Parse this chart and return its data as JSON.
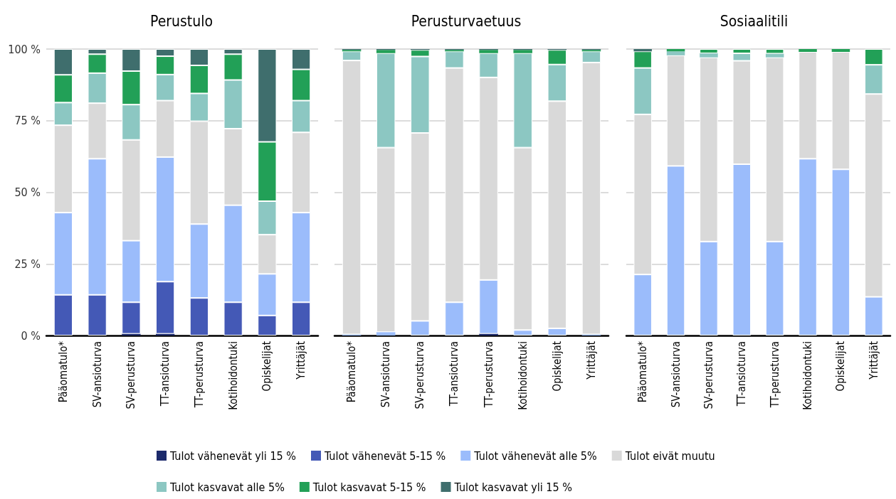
{
  "chart_data": [
    {
      "type": "bar",
      "title": "Perustulo",
      "stacked": true,
      "legend": "bottom",
      "grid": "y",
      "ylim": [
        0,
        100
      ],
      "yticks": [
        {
          "value": 0,
          "label": "0 %"
        },
        {
          "value": 25,
          "label": "25 %"
        },
        {
          "value": 50,
          "label": "50 %"
        },
        {
          "value": 75,
          "label": "75 %"
        },
        {
          "value": 100,
          "label": "100 %"
        }
      ],
      "categories": [
        "Pääomatulo*",
        "SV-ansioturva",
        "SV-perusturva",
        "TT-ansioturva",
        "TT-perusturva",
        "Kotihoidontuki",
        "Opiskelijat",
        "Yrittäjät"
      ],
      "series": [
        {
          "name": "Tulot vähenevät yli 15 %",
          "color": "#1c2a6b",
          "values": [
            0,
            0,
            0.6,
            0.6,
            0,
            0,
            0,
            0
          ]
        },
        {
          "name": "Tulot vähenevät 5-15 %",
          "color": "#4459b6",
          "values": [
            14.2,
            14.2,
            11.0,
            18.2,
            13.1,
            11.6,
            7.0,
            11.6
          ]
        },
        {
          "name": "Tulot vähenevät alle 5%",
          "color": "#9bbcfb",
          "values": [
            28.7,
            47.5,
            21.5,
            43.5,
            25.8,
            33.9,
            14.5,
            31.3
          ]
        },
        {
          "name": "Tulot eivät muutu",
          "color": "#d9d9d9",
          "values": [
            30.5,
            19.4,
            35.2,
            19.7,
            35.9,
            26.7,
            13.7,
            28.0
          ]
        },
        {
          "name": "Tulot kasvavat alle 5%",
          "color": "#8cc7c2",
          "values": [
            7.9,
            10.5,
            12.3,
            9.1,
            9.7,
            17.0,
            11.7,
            11.1
          ]
        },
        {
          "name": "Tulot kasvavat 5-15 %",
          "color": "#22a057",
          "values": [
            9.7,
            6.6,
            11.7,
            6.4,
            9.8,
            9.0,
            20.7,
            10.9
          ]
        },
        {
          "name": "Tulot kasvavat yli 15 %",
          "color": "#3f6e6d",
          "values": [
            9.0,
            1.8,
            7.7,
            2.5,
            5.7,
            1.8,
            32.4,
            7.1
          ]
        }
      ]
    },
    {
      "type": "bar",
      "title": "Perusturvaetuus",
      "stacked": true,
      "grid": "y",
      "tick_labels": "x",
      "ylim": [
        0,
        100
      ],
      "yticks": [
        0,
        25,
        50,
        75,
        100
      ],
      "categories": [
        "Pääomatulo*",
        "SV-ansioturva",
        "SV-perusturva",
        "TT-ansioturva",
        "TT-perusturva",
        "Kotihoidontuki",
        "Opiskelijat",
        "Yrittäjät"
      ],
      "series": [
        {
          "color": "#1c2a6b",
          "values": [
            0,
            0,
            0,
            0,
            0.6,
            0,
            0,
            0
          ]
        },
        {
          "color": "#4459b6",
          "values": [
            0,
            0,
            0,
            0,
            0,
            0,
            0,
            0
          ]
        },
        {
          "color": "#9bbcfb",
          "values": [
            0.4,
            1.2,
            5.1,
            11.6,
            18.8,
            1.9,
            2.5,
            0.4
          ]
        },
        {
          "color": "#d9d9d9",
          "values": [
            95.6,
            64.4,
            65.6,
            81.8,
            70.7,
            63.7,
            79.3,
            94.9
          ]
        },
        {
          "color": "#8cc7c2",
          "values": [
            3.2,
            33.0,
            26.7,
            5.8,
            8.5,
            33.0,
            12.8,
            3.9
          ]
        },
        {
          "color": "#22a057",
          "values": [
            0.5,
            1.1,
            2.3,
            0.5,
            1.1,
            1.1,
            5.1,
            0.5
          ]
        },
        {
          "color": "#3f6e6d",
          "values": [
            0.3,
            0.3,
            0.3,
            0.3,
            0.3,
            0.3,
            0.3,
            0.3
          ]
        }
      ]
    },
    {
      "type": "bar",
      "title": "Sosiaalitili",
      "stacked": true,
      "grid": "y",
      "tick_labels": "x",
      "ylim": [
        0,
        100
      ],
      "yticks": [
        0,
        25,
        50,
        75,
        100
      ],
      "categories": [
        "Pääomatulo*",
        "SV-ansioturva",
        "SV-perusturva",
        "TT-ansioturva",
        "TT-perusturva",
        "Kotihoidontuki",
        "Opiskelijat",
        "Yrittäjät"
      ],
      "series": [
        {
          "color": "#1c2a6b",
          "values": [
            0,
            0,
            0,
            0,
            0,
            0,
            0,
            0
          ]
        },
        {
          "color": "#4459b6",
          "values": [
            0,
            0,
            0,
            0,
            0,
            0,
            0,
            0
          ]
        },
        {
          "color": "#9bbcfb",
          "values": [
            21.3,
            59.2,
            32.8,
            59.8,
            32.8,
            61.7,
            58.0,
            13.5
          ]
        },
        {
          "color": "#d9d9d9",
          "values": [
            55.9,
            38.6,
            64.3,
            36.1,
            64.3,
            37.3,
            41.0,
            70.8
          ]
        },
        {
          "color": "#8cc7c2",
          "values": [
            16.2,
            1.4,
            1.4,
            2.6,
            1.3,
            0,
            0,
            10.2
          ]
        },
        {
          "color": "#22a057",
          "values": [
            5.8,
            0.8,
            1.5,
            1.5,
            1.6,
            1.0,
            1.0,
            5.5
          ]
        },
        {
          "color": "#3f6e6d",
          "values": [
            0.8,
            0,
            0,
            0,
            0,
            0,
            0,
            0
          ]
        }
      ]
    }
  ]
}
